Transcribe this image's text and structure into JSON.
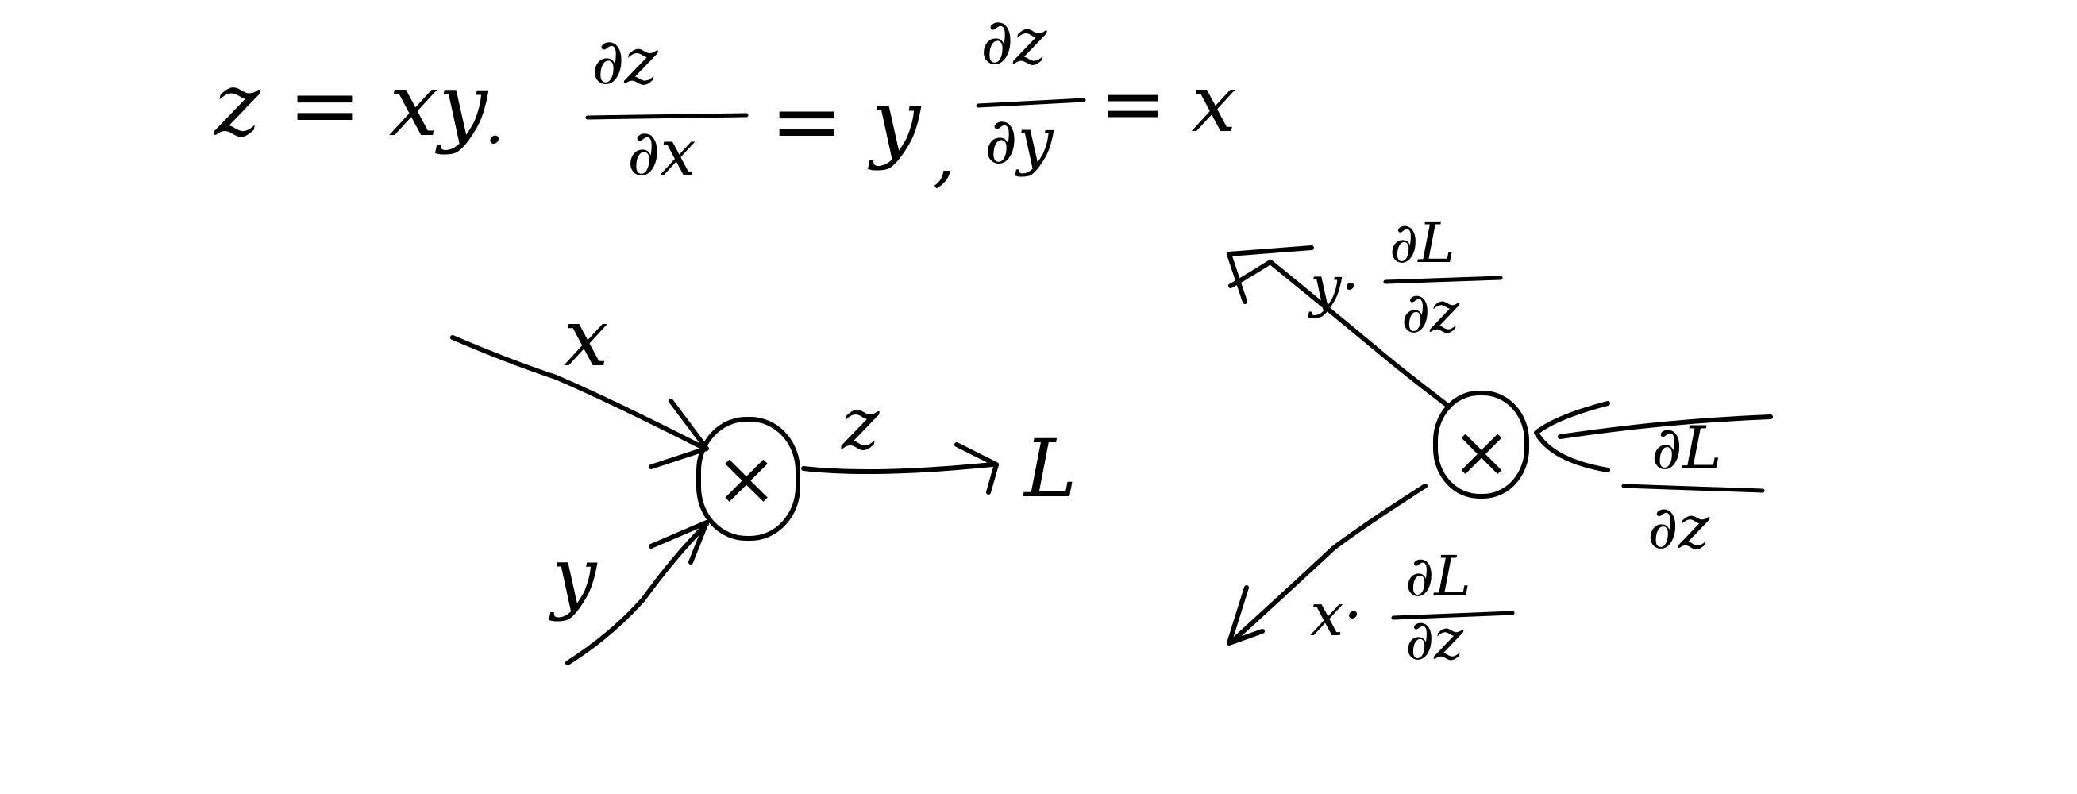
{
  "equation": {
    "lhs": "z = xy",
    "separator": ".",
    "dz_dx": {
      "numerator": "∂z",
      "denominator": "∂x",
      "rhs": "= y"
    },
    "comma": ",",
    "dz_dy": {
      "numerator": "∂z",
      "denominator": "∂y",
      "rhs": "= x"
    }
  },
  "forward_graph": {
    "input_x": "x",
    "input_y": "y",
    "node": "×",
    "output": "z",
    "loss": "L"
  },
  "backward_graph": {
    "node": "×",
    "upstream_grad": {
      "numerator": "∂L",
      "denominator": "∂z"
    },
    "grad_to_x": {
      "prefix": "y·",
      "numerator": "∂L",
      "denominator": "∂z"
    },
    "grad_to_y": {
      "prefix": "x·",
      "numerator": "∂L",
      "denominator": "∂z"
    }
  }
}
